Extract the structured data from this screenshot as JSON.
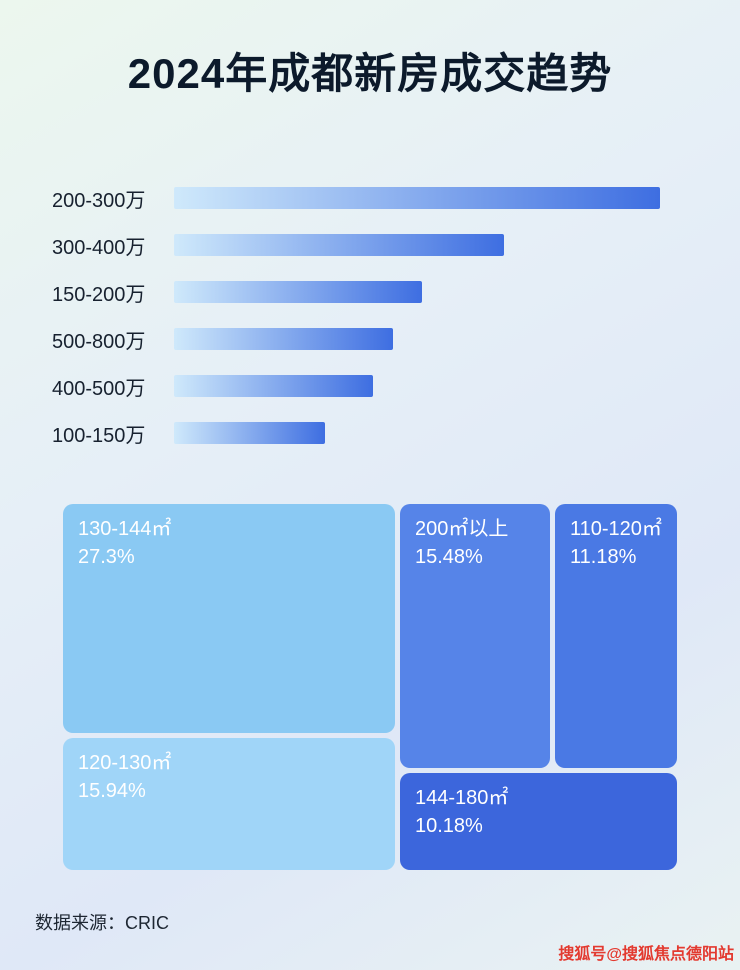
{
  "page": {
    "title": "2024年成都新房成交趋势",
    "source": "数据来源：CRIC",
    "watermark": "搜狐号@搜狐焦点德阳站"
  },
  "colors": {
    "bar_gradient_start": "#cfe9fb",
    "bar_gradient_end": "#3e6ee1",
    "block_130_144": "#8ac9f3",
    "block_120_130": "#a0d5f8",
    "block_200_plus": "#5684e8",
    "block_110_120": "#4a79e4",
    "block_144_180": "#3c66dc",
    "watermark_red": "#e23a30"
  },
  "chart_data": [
    {
      "type": "bar",
      "orientation": "horizontal",
      "title": "2024年成都新房成交趋势",
      "categories": [
        "200-300万",
        "300-400万",
        "150-200万",
        "500-800万",
        "400-500万",
        "100-150万"
      ],
      "values": [
        100,
        68,
        51,
        45,
        41,
        31
      ],
      "value_note": "relative bar lengths as % of longest bar; no numeric axis shown in image",
      "xlabel": "",
      "ylabel": "",
      "grid": false,
      "legend": false
    },
    {
      "type": "treemap",
      "items": [
        {
          "label": "130-144㎡",
          "value": "27.3%"
        },
        {
          "label": "120-130㎡",
          "value": "15.94%"
        },
        {
          "label": "200㎡以上",
          "value": "15.48%"
        },
        {
          "label": "110-120㎡",
          "value": "11.18%"
        },
        {
          "label": "144-180㎡",
          "value": "10.18%"
        }
      ],
      "legend": false
    }
  ]
}
